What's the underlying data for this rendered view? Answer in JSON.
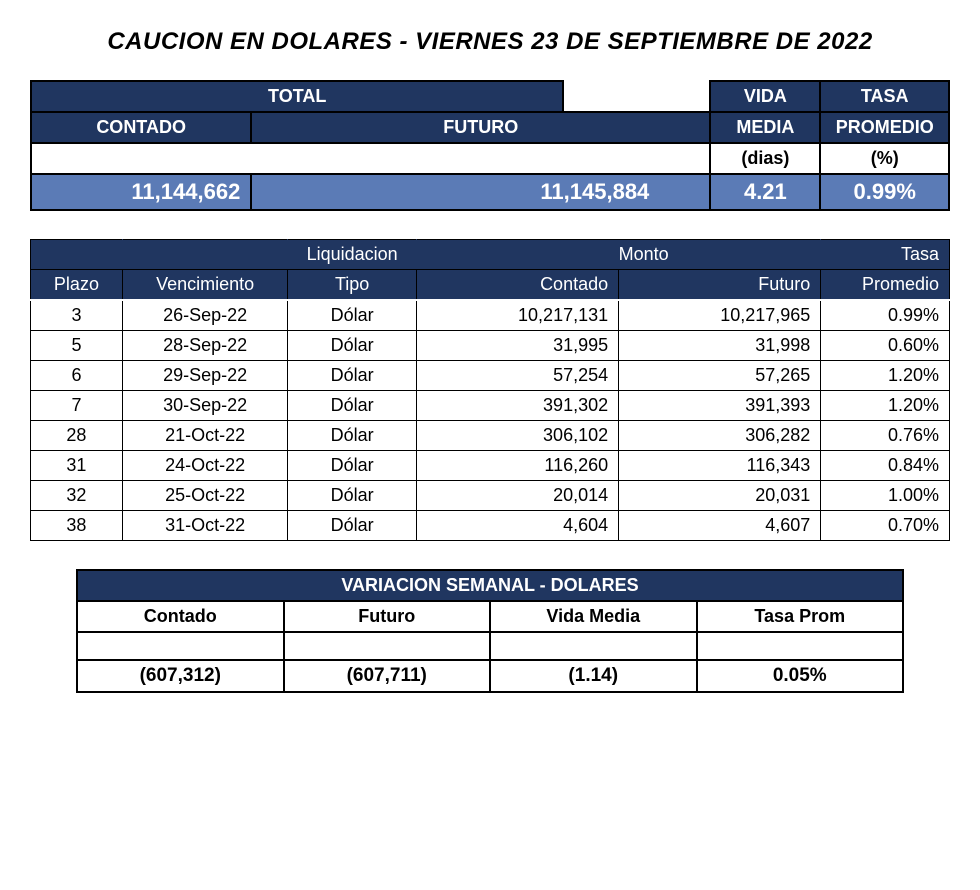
{
  "page_title": "CAUCION EN DOLARES - VIERNES  23 DE SEPTIEMBRE DE 2022",
  "colors": {
    "header_bg": "#203660",
    "header_fg": "#ffffff",
    "accent_bg": "#5b7bb6",
    "accent_fg": "#ffffff",
    "border": "#000000",
    "body_bg": "#ffffff",
    "body_fg": "#000000"
  },
  "summary": {
    "labels": {
      "total": "TOTAL",
      "contado": "CONTADO",
      "futuro": "FUTURO",
      "vida_media": "VIDA",
      "vida_media2": "MEDIA",
      "tasa": "TASA",
      "tasa2": "PROMEDIO",
      "dias": "(dias)",
      "pct": "(%)"
    },
    "values": {
      "contado": "11,144,662",
      "futuro": "11,145,884",
      "vida_media": "4.21",
      "tasa_promedio": "0.99%"
    }
  },
  "detail": {
    "header": {
      "liquidacion": "Liquidacion",
      "monto": "Monto",
      "tasa": "Tasa",
      "plazo": "Plazo",
      "vencimiento": "Vencimiento",
      "tipo": "Tipo",
      "contado": "Contado",
      "futuro": "Futuro",
      "promedio": "Promedio"
    },
    "rows": [
      {
        "plazo": "3",
        "vencimiento": "26-Sep-22",
        "tipo": "Dólar",
        "contado": "10,217,131",
        "futuro": "10,217,965",
        "tasa": "0.99%"
      },
      {
        "plazo": "5",
        "vencimiento": "28-Sep-22",
        "tipo": "Dólar",
        "contado": "31,995",
        "futuro": "31,998",
        "tasa": "0.60%"
      },
      {
        "plazo": "6",
        "vencimiento": "29-Sep-22",
        "tipo": "Dólar",
        "contado": "57,254",
        "futuro": "57,265",
        "tasa": "1.20%"
      },
      {
        "plazo": "7",
        "vencimiento": "30-Sep-22",
        "tipo": "Dólar",
        "contado": "391,302",
        "futuro": "391,393",
        "tasa": "1.20%"
      },
      {
        "plazo": "28",
        "vencimiento": "21-Oct-22",
        "tipo": "Dólar",
        "contado": "306,102",
        "futuro": "306,282",
        "tasa": "0.76%"
      },
      {
        "plazo": "31",
        "vencimiento": "24-Oct-22",
        "tipo": "Dólar",
        "contado": "116,260",
        "futuro": "116,343",
        "tasa": "0.84%"
      },
      {
        "plazo": "32",
        "vencimiento": "25-Oct-22",
        "tipo": "Dólar",
        "contado": "20,014",
        "futuro": "20,031",
        "tasa": "1.00%"
      },
      {
        "plazo": "38",
        "vencimiento": "31-Oct-22",
        "tipo": "Dólar",
        "contado": "4,604",
        "futuro": "4,607",
        "tasa": "0.70%"
      }
    ]
  },
  "variation": {
    "title": "VARIACION SEMANAL - DOLARES",
    "labels": {
      "contado": "Contado",
      "futuro": "Futuro",
      "vida_media": "Vida Media",
      "tasa_prom": "Tasa Prom"
    },
    "values": {
      "contado": "(607,312)",
      "futuro": "(607,711)",
      "vida_media": "(1.14)",
      "tasa_prom": "0.05%"
    }
  }
}
